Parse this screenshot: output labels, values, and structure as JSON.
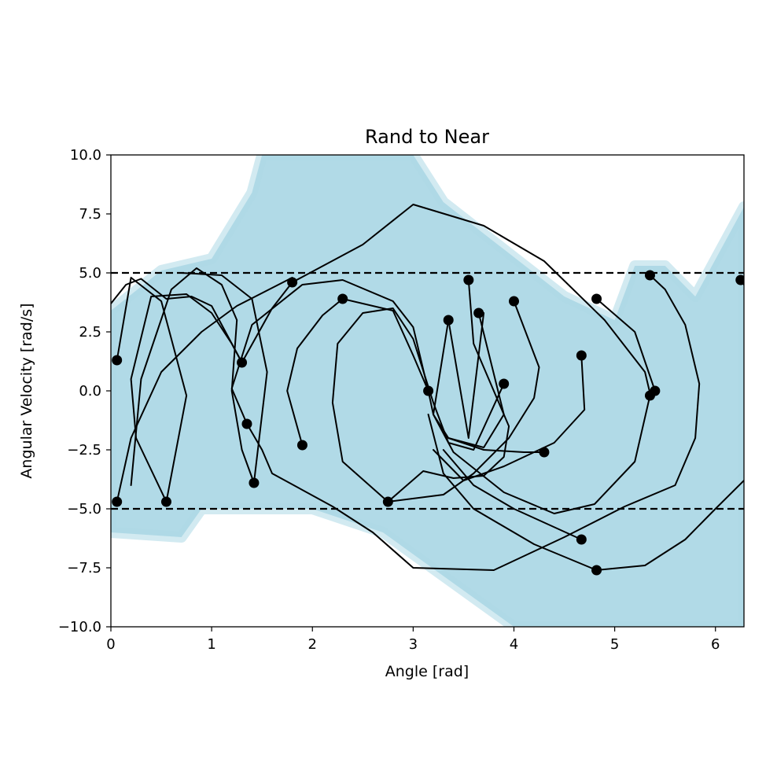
{
  "chart_data": {
    "type": "line",
    "title": "Rand to Near",
    "xlabel": "Angle [rad]",
    "ylabel": "Angular Velocity [rad/s]",
    "xlim": [
      0,
      6.283
    ],
    "ylim": [
      -10,
      10
    ],
    "x_ticks": [
      0,
      1,
      2,
      3,
      4,
      5,
      6
    ],
    "y_ticks": [
      -10.0,
      -7.5,
      -5.0,
      -2.5,
      0.0,
      2.5,
      5.0,
      7.5,
      10.0
    ],
    "x_tick_labels": [
      "0",
      "1",
      "2",
      "3",
      "4",
      "5",
      "6"
    ],
    "y_tick_labels": [
      "−10.0",
      "−7.5",
      "−5.0",
      "−2.5",
      "0.0",
      "2.5",
      "5.0",
      "7.5",
      "10.0"
    ],
    "grid": false,
    "legend": "none",
    "reference_lines": [
      {
        "axis": "y",
        "value": 5.0,
        "style": "dashed",
        "color": "#000000"
      },
      {
        "axis": "y",
        "value": -5.0,
        "style": "dashed",
        "color": "#000000"
      }
    ],
    "colors": {
      "region_fill": "#add8e6",
      "trajectory": "#000000",
      "node": "#000000"
    },
    "reachable_band": [
      [
        0.0,
        3.4
      ],
      [
        0.5,
        5.1
      ],
      [
        1.0,
        5.6
      ],
      [
        1.4,
        8.4
      ],
      [
        1.5,
        10.0
      ],
      [
        3.0,
        10.0
      ],
      [
        3.3,
        8.0
      ],
      [
        4.5,
        4.0
      ],
      [
        5.0,
        3.0
      ],
      [
        5.2,
        5.3
      ],
      [
        5.5,
        5.3
      ],
      [
        5.8,
        4.0
      ],
      [
        6.283,
        7.8
      ],
      [
        6.283,
        -10.0
      ],
      [
        5.5,
        -10.0
      ],
      [
        4.0,
        -10.0
      ],
      [
        2.7,
        -6.0
      ],
      [
        2.0,
        -5.0
      ],
      [
        0.9,
        -5.0
      ],
      [
        0.7,
        -6.2
      ],
      [
        0.0,
        -6.0
      ]
    ],
    "trajectories": [
      [
        [
          0.06,
          1.3
        ],
        [
          0.2,
          4.8
        ],
        [
          0.5,
          3.8
        ],
        [
          0.75,
          -0.2
        ],
        [
          0.55,
          -4.7
        ]
      ],
      [
        [
          0.0,
          3.7
        ],
        [
          0.15,
          4.5
        ],
        [
          0.3,
          4.75
        ],
        [
          0.55,
          3.9
        ],
        [
          0.8,
          4.0
        ],
        [
          1.0,
          3.6
        ],
        [
          1.3,
          1.2
        ]
      ],
      [
        [
          0.55,
          -4.7
        ],
        [
          0.25,
          -2.0
        ],
        [
          0.2,
          0.5
        ],
        [
          0.4,
          4.0
        ],
        [
          0.75,
          4.1
        ],
        [
          1.0,
          3.3
        ],
        [
          1.2,
          2.0
        ],
        [
          1.3,
          1.2
        ]
      ],
      [
        [
          1.42,
          -3.9
        ],
        [
          1.3,
          -2.5
        ],
        [
          1.2,
          0.0
        ],
        [
          1.25,
          3.0
        ],
        [
          1.1,
          4.5
        ],
        [
          0.85,
          5.2
        ],
        [
          0.6,
          4.3
        ],
        [
          0.3,
          0.5
        ],
        [
          0.2,
          -4.0
        ]
      ],
      [
        [
          1.42,
          -3.9
        ],
        [
          1.55,
          0.8
        ],
        [
          1.4,
          3.9
        ],
        [
          1.1,
          4.9
        ],
        [
          0.7,
          5.0
        ]
      ],
      [
        [
          1.3,
          1.2
        ],
        [
          1.6,
          3.5
        ],
        [
          1.8,
          4.6
        ]
      ],
      [
        [
          1.8,
          4.6
        ],
        [
          2.5,
          6.2
        ],
        [
          3.0,
          7.9
        ],
        [
          3.7,
          7.0
        ],
        [
          4.3,
          5.5
        ],
        [
          4.9,
          3.0
        ],
        [
          5.3,
          0.8
        ],
        [
          5.35,
          -0.1
        ]
      ],
      [
        [
          1.35,
          -1.4
        ],
        [
          1.2,
          0.1
        ],
        [
          1.4,
          2.8
        ],
        [
          1.9,
          4.5
        ],
        [
          2.3,
          4.7
        ],
        [
          2.8,
          3.8
        ],
        [
          3.0,
          2.7
        ],
        [
          3.15,
          0.0
        ]
      ],
      [
        [
          1.35,
          -1.4
        ],
        [
          1.5,
          -2.5
        ],
        [
          1.6,
          -3.5
        ],
        [
          2.2,
          -4.9
        ],
        [
          2.6,
          -6.0
        ],
        [
          3.0,
          -7.5
        ],
        [
          3.8,
          -7.6
        ],
        [
          4.5,
          -6.2
        ],
        [
          5.1,
          -4.9
        ],
        [
          5.6,
          -4.0
        ],
        [
          5.8,
          -2.0
        ],
        [
          5.84,
          0.3
        ],
        [
          5.7,
          2.8
        ],
        [
          5.5,
          4.3
        ],
        [
          5.35,
          4.9
        ]
      ],
      [
        [
          0.06,
          -4.7
        ],
        [
          0.2,
          -2.0
        ],
        [
          0.5,
          0.8
        ],
        [
          0.9,
          2.5
        ],
        [
          1.25,
          3.6
        ],
        [
          1.8,
          4.8
        ]
      ],
      [
        [
          1.9,
          -2.3
        ],
        [
          1.75,
          0.0
        ],
        [
          1.85,
          1.8
        ],
        [
          2.1,
          3.2
        ],
        [
          2.3,
          3.9
        ]
      ],
      [
        [
          2.3,
          3.9
        ],
        [
          2.8,
          3.4
        ],
        [
          3.0,
          1.5
        ],
        [
          3.15,
          0.0
        ]
      ],
      [
        [
          3.15,
          0.0
        ],
        [
          3.2,
          -1.0
        ],
        [
          3.4,
          -2.6
        ],
        [
          3.9,
          -4.3
        ],
        [
          4.4,
          -5.2
        ],
        [
          4.8,
          -4.8
        ],
        [
          5.2,
          -3.0
        ],
        [
          5.35,
          -0.2
        ]
      ],
      [
        [
          2.75,
          -4.7
        ],
        [
          2.3,
          -3.0
        ],
        [
          2.2,
          -0.5
        ],
        [
          2.25,
          2.0
        ],
        [
          2.5,
          3.3
        ],
        [
          2.8,
          3.5
        ],
        [
          3.0,
          2.2
        ],
        [
          3.2,
          -0.5
        ],
        [
          3.35,
          -2.2
        ],
        [
          3.6,
          -2.5
        ],
        [
          3.9,
          0.3
        ]
      ],
      [
        [
          2.75,
          -4.7
        ],
        [
          3.1,
          -3.4
        ],
        [
          3.4,
          -3.7
        ],
        [
          3.7,
          -3.6
        ],
        [
          3.9,
          -2.8
        ],
        [
          3.95,
          -1.5
        ],
        [
          3.6,
          2.0
        ],
        [
          3.55,
          4.7
        ]
      ],
      [
        [
          2.75,
          -4.7
        ],
        [
          3.3,
          -4.4
        ],
        [
          3.6,
          -3.5
        ],
        [
          3.95,
          -2.0
        ],
        [
          4.2,
          -0.3
        ],
        [
          4.25,
          1.0
        ],
        [
          4.0,
          3.8
        ]
      ],
      [
        [
          3.35,
          3.0
        ],
        [
          3.55,
          -2.0
        ],
        [
          3.7,
          3.3
        ]
      ],
      [
        [
          3.35,
          3.0
        ],
        [
          3.2,
          -1.0
        ],
        [
          3.35,
          -2.0
        ],
        [
          3.7,
          -2.4
        ],
        [
          3.9,
          -1.0
        ],
        [
          3.65,
          3.3
        ]
      ],
      [
        [
          3.35,
          -2.0
        ],
        [
          3.7,
          -2.5
        ],
        [
          4.1,
          -2.6
        ],
        [
          4.3,
          -2.6
        ]
      ],
      [
        [
          4.67,
          1.5
        ],
        [
          4.7,
          -0.8
        ],
        [
          4.4,
          -2.2
        ],
        [
          3.9,
          -3.2
        ],
        [
          3.5,
          -3.8
        ],
        [
          3.2,
          -2.5
        ]
      ],
      [
        [
          4.67,
          -6.3
        ],
        [
          4.0,
          -5.0
        ],
        [
          3.6,
          -4.0
        ],
        [
          3.3,
          -2.5
        ]
      ],
      [
        [
          4.82,
          -7.6
        ],
        [
          4.2,
          -6.5
        ],
        [
          3.6,
          -5.0
        ],
        [
          3.3,
          -3.5
        ],
        [
          3.15,
          -1.0
        ]
      ],
      [
        [
          4.82,
          -7.6
        ],
        [
          5.3,
          -7.4
        ],
        [
          5.7,
          -6.3
        ],
        [
          6.0,
          -5.0
        ],
        [
          6.283,
          -3.8
        ]
      ],
      [
        [
          4.82,
          3.9
        ],
        [
          5.2,
          2.5
        ],
        [
          5.4,
          0.0
        ]
      ],
      [
        [
          6.25,
          4.7
        ],
        [
          6.283,
          4.5
        ]
      ]
    ],
    "nodes": [
      [
        0.06,
        1.3
      ],
      [
        0.06,
        -4.7
      ],
      [
        0.55,
        -4.7
      ],
      [
        1.3,
        1.2
      ],
      [
        1.35,
        -1.4
      ],
      [
        1.42,
        -3.9
      ],
      [
        1.8,
        4.6
      ],
      [
        1.9,
        -2.3
      ],
      [
        2.3,
        3.9
      ],
      [
        2.75,
        -4.7
      ],
      [
        3.15,
        0.0
      ],
      [
        3.35,
        3.0
      ],
      [
        3.55,
        4.7
      ],
      [
        3.65,
        3.3
      ],
      [
        3.9,
        0.3
      ],
      [
        4.0,
        3.8
      ],
      [
        4.3,
        -2.6
      ],
      [
        4.67,
        1.5
      ],
      [
        4.67,
        -6.3
      ],
      [
        4.82,
        3.9
      ],
      [
        4.82,
        -7.6
      ],
      [
        5.35,
        4.9
      ],
      [
        5.35,
        -0.2
      ],
      [
        5.4,
        0.0
      ],
      [
        6.25,
        4.7
      ]
    ]
  }
}
